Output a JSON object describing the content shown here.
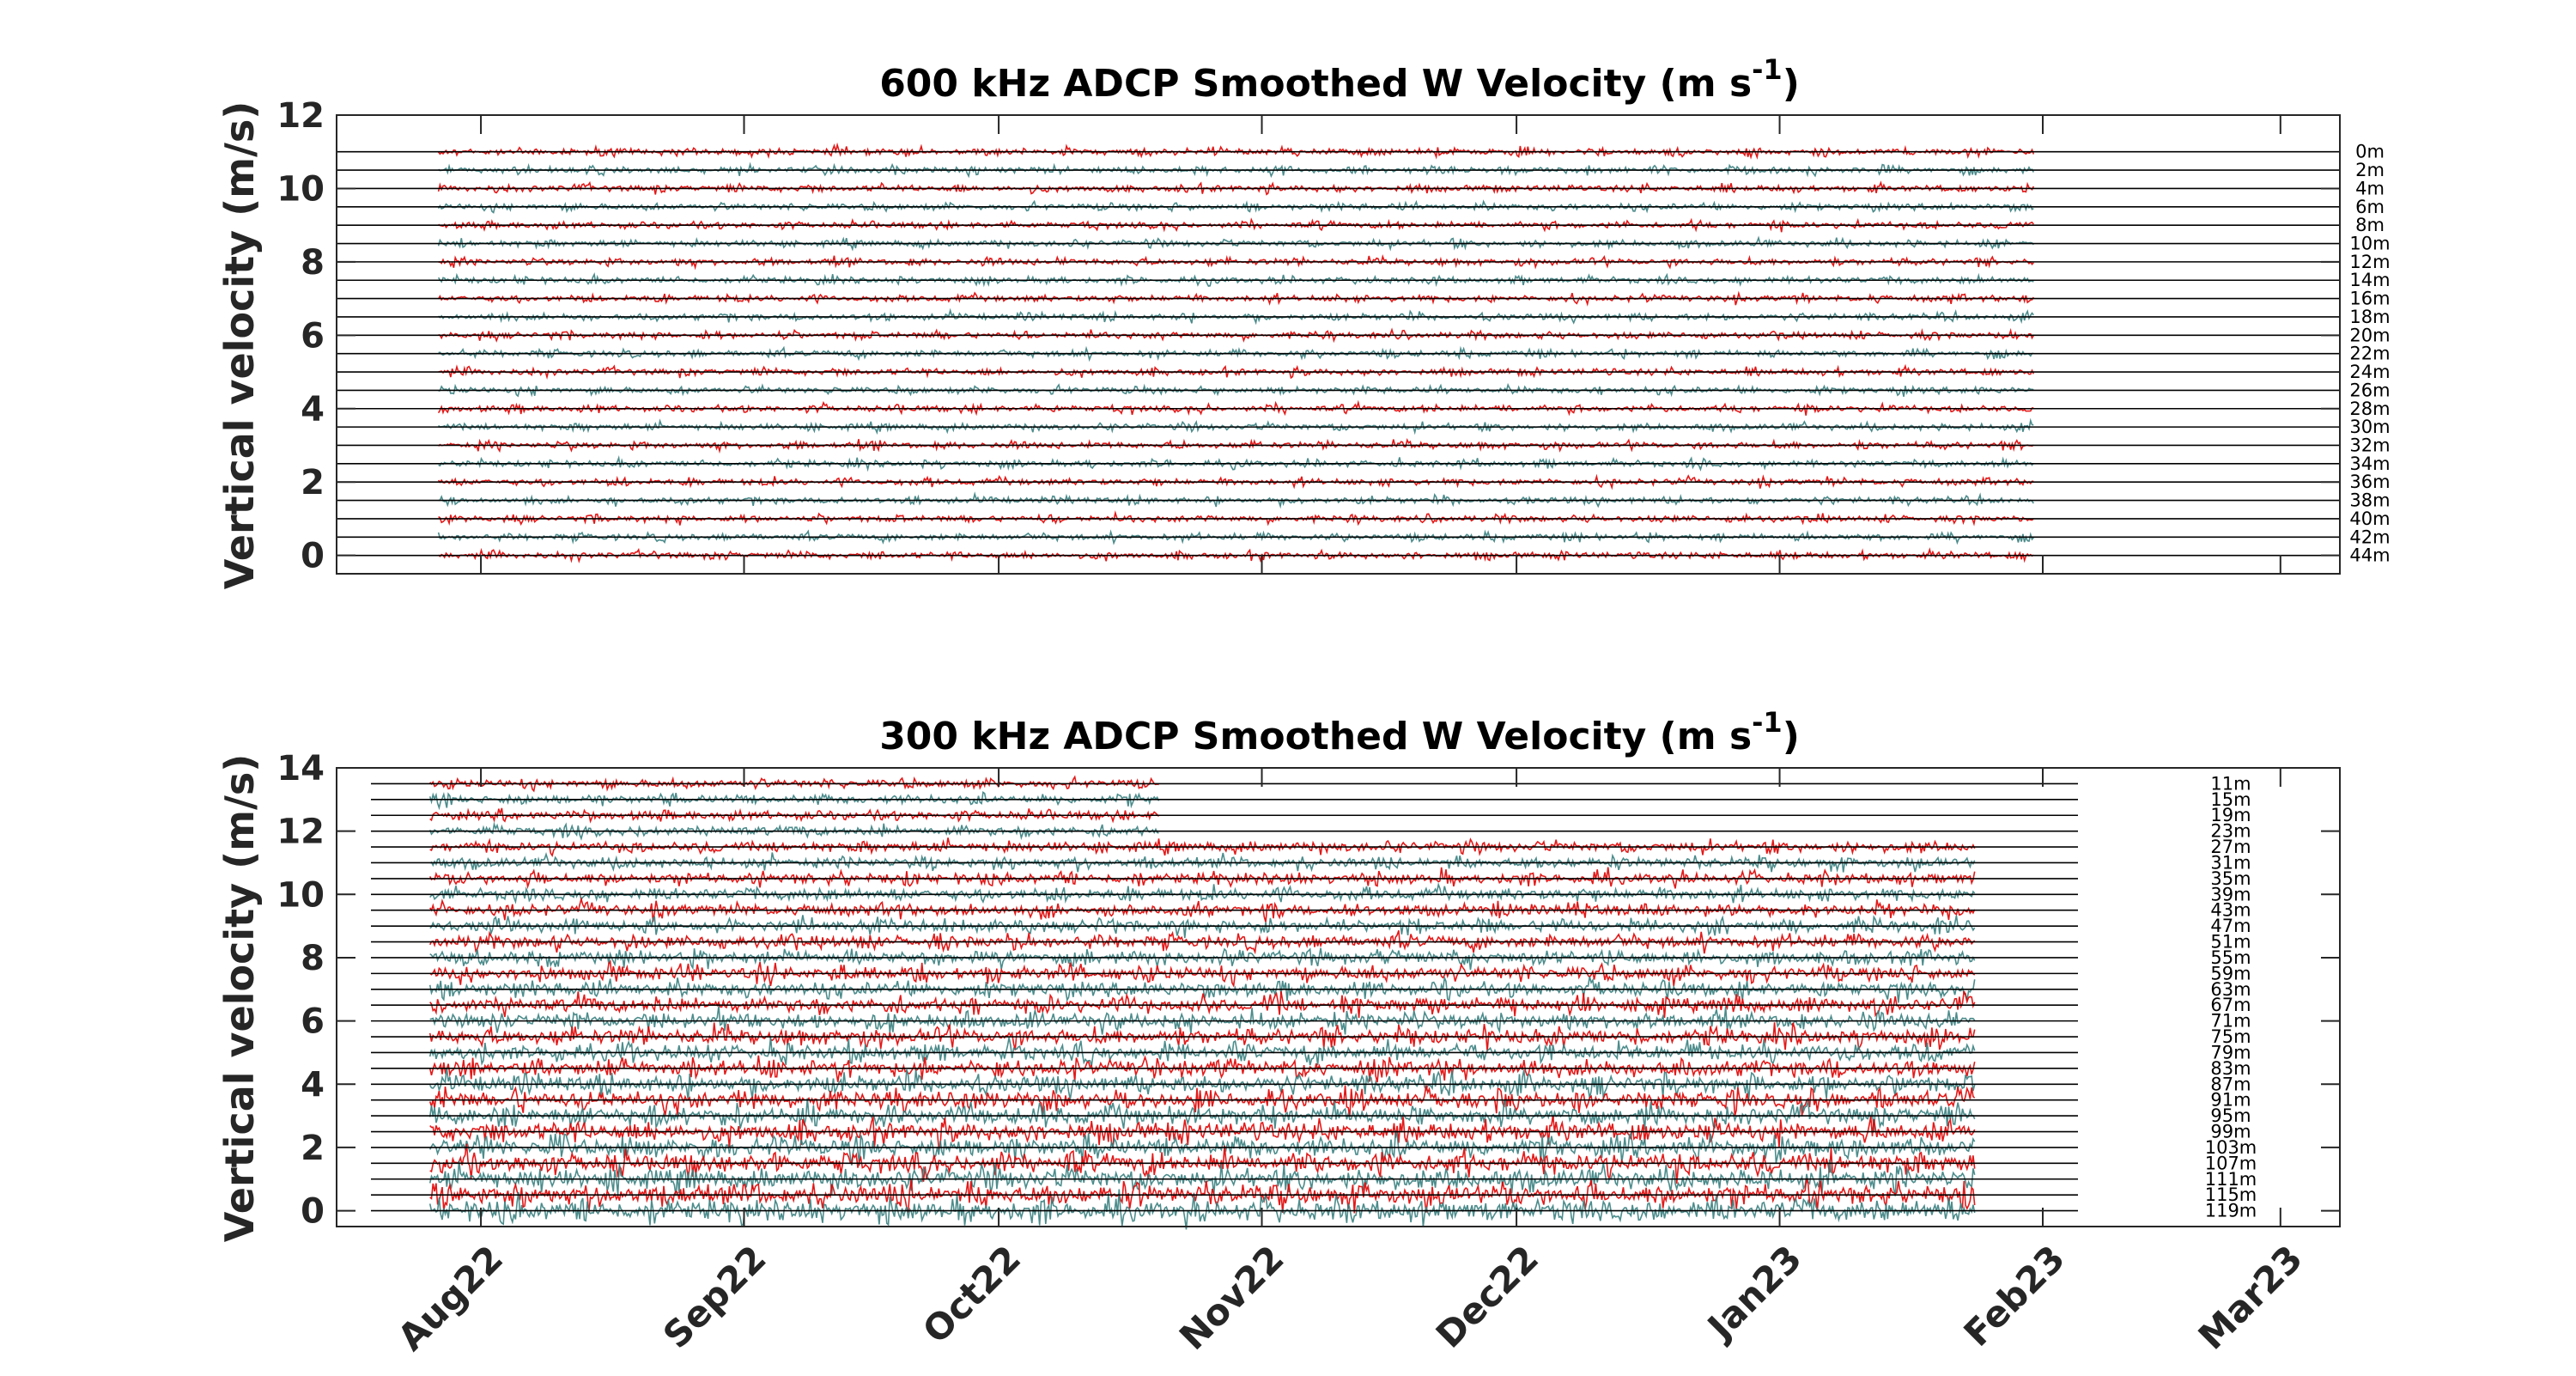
{
  "chart_data": [
    {
      "type": "line",
      "title": "600 kHz ADCP Smoothed W Velocity",
      "title_units": "(m s",
      "title_units_sup": "-1",
      "title_units_close": ")",
      "ylabel": "Vertical velocity (m/s)",
      "ylim": [
        -0.5,
        12
      ],
      "yticks": [
        0,
        2,
        4,
        6,
        8,
        10,
        12
      ],
      "xlim": [
        "2022-07-15",
        "2023-03-08"
      ],
      "data_range": [
        "2022-07-27",
        "2023-01-31"
      ],
      "depth_labels": [
        "0m",
        "2m",
        "4m",
        "6m",
        "8m",
        "10m",
        "12m",
        "14m",
        "16m",
        "18m",
        "20m",
        "22m",
        "24m",
        "26m",
        "28m",
        "30m",
        "32m",
        "34m",
        "36m",
        "38m",
        "40m",
        "42m",
        "44m"
      ],
      "offsets": [
        11,
        10.5,
        10,
        9.5,
        9,
        8.5,
        8,
        7.5,
        7,
        6.5,
        6,
        5.5,
        5,
        4.5,
        4,
        3.5,
        3,
        2.5,
        2,
        1.5,
        1,
        0.5,
        0
      ],
      "series_colors": [
        "#e00000",
        "#3a7f7f"
      ],
      "grid": false
    },
    {
      "type": "line",
      "title": "300 kHz ADCP Smoothed W Velocity",
      "title_units": "(m s",
      "title_units_sup": "-1",
      "title_units_close": ")",
      "ylabel": "Vertical velocity (m/s)",
      "ylim": [
        -0.5,
        14
      ],
      "yticks": [
        0,
        2,
        4,
        6,
        8,
        10,
        12,
        14
      ],
      "xlim": [
        "2022-07-15",
        "2023-03-08"
      ],
      "data_range": [
        "2022-07-26",
        "2023-01-24"
      ],
      "xticks": [
        "Aug22",
        "Sep22",
        "Oct22",
        "Nov22",
        "Dec22",
        "Jan23",
        "Feb23",
        "Mar23"
      ],
      "xtick_dates": [
        "2022-08-01",
        "2022-09-01",
        "2022-10-01",
        "2022-11-01",
        "2022-12-01",
        "2023-01-01",
        "2023-02-01",
        "2023-03-01"
      ],
      "depth_labels": [
        "11m",
        "15m",
        "19m",
        "23m",
        "27m",
        "31m",
        "35m",
        "39m",
        "43m",
        "47m",
        "51m",
        "55m",
        "59m",
        "63m",
        "67m",
        "71m",
        "75m",
        "79m",
        "83m",
        "87m",
        "91m",
        "95m",
        "99m",
        "103m",
        "107m",
        "111m",
        "115m",
        "119m"
      ],
      "offsets": [
        13.5,
        13,
        12.5,
        12,
        11.5,
        11,
        10.5,
        10,
        9.5,
        9,
        8.5,
        8,
        7.5,
        7,
        6.5,
        6,
        5.5,
        5,
        4.5,
        4,
        3.5,
        3,
        2.5,
        2,
        1.5,
        1,
        0.5,
        0
      ],
      "series_colors": [
        "#e00000",
        "#3a7f7f"
      ],
      "grid": false
    }
  ]
}
